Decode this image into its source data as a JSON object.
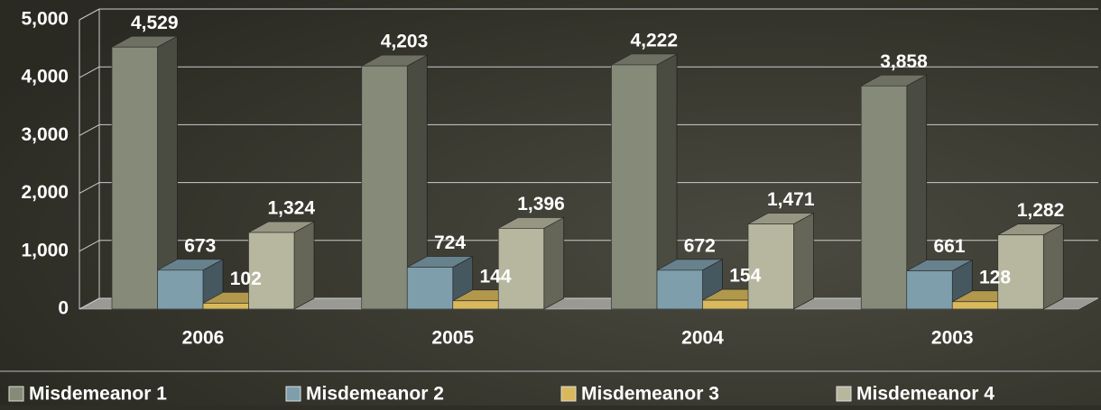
{
  "chart_data": {
    "type": "bar3d",
    "categories": [
      "2006",
      "2005",
      "2004",
      "2003"
    ],
    "series": [
      {
        "name": "Misdemeanor 1",
        "color": "#868a78",
        "values": [
          4529,
          4203,
          4222,
          3858
        ],
        "value_labels": [
          "4,529",
          "4,203",
          "4,222",
          "3,858"
        ]
      },
      {
        "name": "Misdemeanor 2",
        "color": "#7e9eac",
        "values": [
          673,
          724,
          672,
          661
        ],
        "value_labels": [
          "673",
          "724",
          "672",
          "661"
        ]
      },
      {
        "name": "Misdemeanor 3",
        "color": "#d9b95c",
        "values": [
          102,
          144,
          154,
          128
        ],
        "value_labels": [
          "102",
          "144",
          "154",
          "128"
        ]
      },
      {
        "name": "Misdemeanor 4",
        "color": "#b7b7a0",
        "values": [
          1324,
          1396,
          1471,
          1282
        ],
        "value_labels": [
          "1,324",
          "1,396",
          "1,471",
          "1,282"
        ]
      }
    ],
    "ylim": [
      0,
      5000
    ],
    "yticks": [
      0,
      {
        "value": 1000,
        "label": "1,000"
      },
      {
        "value": 2000,
        "label": "2,000"
      },
      {
        "value": 3000,
        "label": "3,000"
      },
      {
        "value": 4000,
        "label": "4,000"
      },
      {
        "value": 5000,
        "label": "5,000"
      }
    ],
    "grid": true,
    "legend": "bottom"
  }
}
